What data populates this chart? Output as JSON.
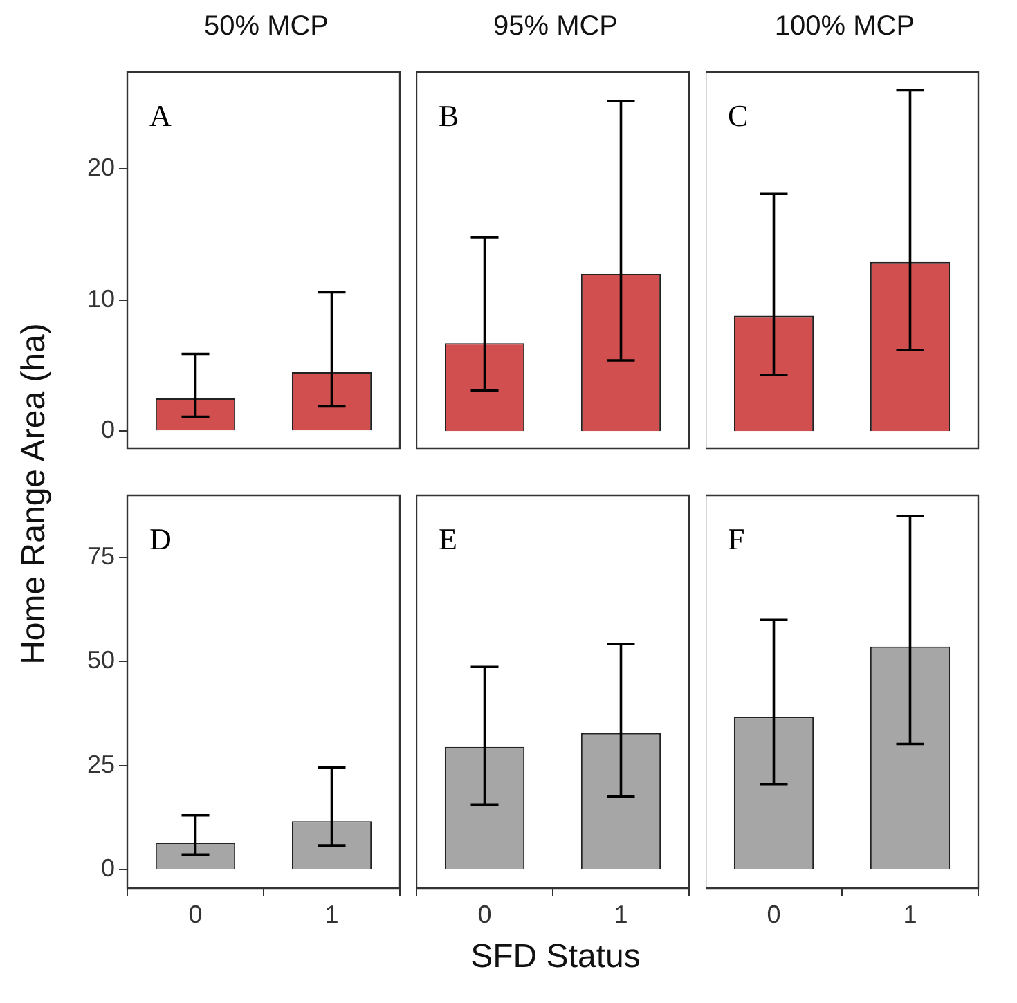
{
  "chart_data": [
    {
      "type": "bar",
      "title": "50% MCP",
      "ylabel": "Home Range Area (ha)",
      "categories": [
        "0",
        "1"
      ],
      "values": [
        2.5,
        4.5
      ],
      "errors": [
        [
          1.1,
          5.9
        ],
        [
          1.9,
          10.6
        ]
      ],
      "color": "#d14f4f",
      "ylim": [
        -1.3,
        27.4
      ],
      "yticks": [
        0,
        10,
        20
      ],
      "tick_labels": "y",
      "annotations": [
        "A"
      ]
    },
    {
      "type": "bar",
      "title": "95% MCP",
      "categories": [
        "0",
        "1"
      ],
      "values": [
        6.7,
        12.0
      ],
      "errors": [
        [
          3.1,
          14.8
        ],
        [
          5.4,
          25.2
        ]
      ],
      "color": "#d14f4f",
      "ylim": [
        -1.3,
        27.4
      ],
      "yticks": [
        0,
        10,
        20
      ],
      "tick_labels": false,
      "annotations": [
        "B"
      ]
    },
    {
      "type": "bar",
      "title": "100% MCP",
      "categories": [
        "0",
        "1"
      ],
      "values": [
        8.8,
        12.9
      ],
      "errors": [
        [
          4.3,
          18.1
        ],
        [
          6.2,
          26.0
        ]
      ],
      "color": "#d14f4f",
      "ylim": [
        -1.3,
        27.4
      ],
      "yticks": [
        0,
        10,
        20
      ],
      "tick_labels": false,
      "annotations": [
        "C"
      ]
    },
    {
      "type": "bar",
      "categories": [
        "0",
        "1"
      ],
      "values": [
        6.5,
        11.6
      ],
      "errors": [
        [
          3.6,
          13
        ],
        [
          5.8,
          24.5
        ]
      ],
      "color": "#a6a6a6",
      "ylim": [
        -4.5,
        90
      ],
      "yticks": [
        0,
        25,
        50,
        75
      ],
      "annotations": [
        "D"
      ]
    },
    {
      "type": "bar",
      "xlabel": "SFD Status",
      "categories": [
        "0",
        "1"
      ],
      "values": [
        29.5,
        32.8
      ],
      "errors": [
        [
          15.6,
          48.7
        ],
        [
          17.5,
          54.2
        ]
      ],
      "color": "#a6a6a6",
      "ylim": [
        -4.5,
        90
      ],
      "yticks": [
        0,
        25,
        50,
        75
      ],
      "tick_labels": "x",
      "annotations": [
        "E"
      ]
    },
    {
      "type": "bar",
      "categories": [
        "0",
        "1"
      ],
      "values": [
        36.7,
        53.6
      ],
      "errors": [
        [
          20.5,
          60
        ],
        [
          30.2,
          85
        ]
      ],
      "color": "#a6a6a6",
      "ylim": [
        -4.5,
        90
      ],
      "yticks": [
        0,
        25,
        50,
        75
      ],
      "tick_labels": "x",
      "annotations": [
        "F"
      ]
    }
  ]
}
